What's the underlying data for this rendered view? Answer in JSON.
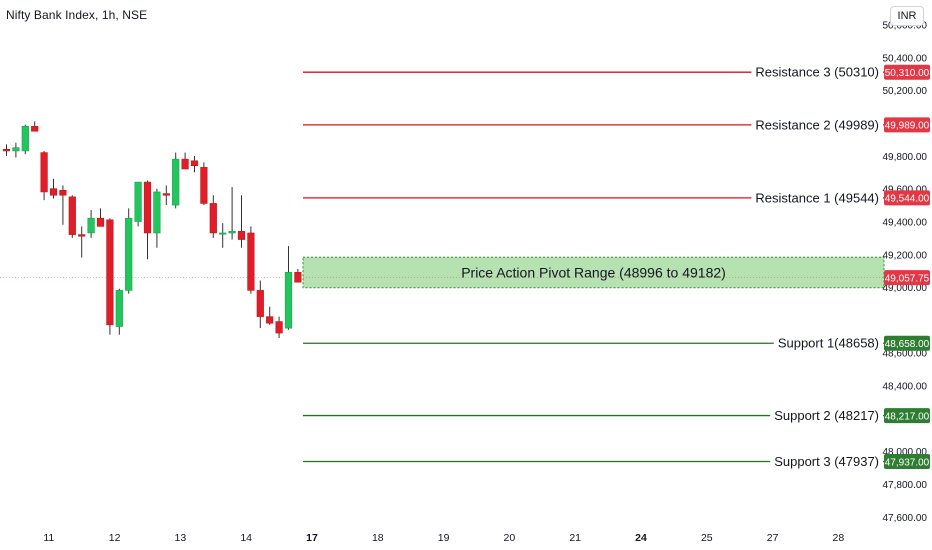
{
  "header": {
    "symbol": "Nifty Bank Index, 1h, NSE",
    "currency": "INR"
  },
  "colors": {
    "up": "#22c55e",
    "down": "#e11d2a",
    "resistance": "#d7141f",
    "support": "#1a7a1a",
    "pivot_fill": "#a9dca3",
    "axis_text": "#131722"
  },
  "chart_data": {
    "type": "candlestick",
    "ylim": [
      47550,
      50750
    ],
    "y_ticks": [
      "50,600.00",
      "50,400.00",
      "50,200.00",
      "49,800.00",
      "49,600.00",
      "49,400.00",
      "49,200.00",
      "49,000.00",
      "48,600.00",
      "48,400.00",
      "48,000.00",
      "47,800.00",
      "47,600.00"
    ],
    "y_tick_values": [
      50600,
      50400,
      50200,
      49800,
      49600,
      49400,
      49200,
      49000,
      48600,
      48400,
      48000,
      47800,
      47600
    ],
    "x_ticks": [
      {
        "label": "11",
        "bar": 4.5,
        "bold": false
      },
      {
        "label": "12",
        "bar": 11.5,
        "bold": false
      },
      {
        "label": "13",
        "bar": 18.5,
        "bold": false
      },
      {
        "label": "14",
        "bar": 25.5,
        "bold": false
      },
      {
        "label": "17",
        "bar": 32.5,
        "bold": true
      },
      {
        "label": "18",
        "bar": 39.5,
        "bold": false
      },
      {
        "label": "19",
        "bar": 46.5,
        "bold": false
      },
      {
        "label": "20",
        "bar": 53.5,
        "bold": false
      },
      {
        "label": "21",
        "bar": 60.5,
        "bold": false
      },
      {
        "label": "24",
        "bar": 67.5,
        "bold": true
      },
      {
        "label": "25",
        "bar": 74.5,
        "bold": false
      },
      {
        "label": "27",
        "bar": 81.5,
        "bold": false
      },
      {
        "label": "28",
        "bar": 88.5,
        "bold": false
      }
    ],
    "current_price": {
      "value": 49057.75,
      "label": "49,057.75"
    },
    "levels": [
      {
        "name": "Resistance 3 (50310)",
        "value": 50310,
        "label": "50,310.00",
        "kind": "resistance"
      },
      {
        "name": "Resistance 2 (49989)",
        "value": 49989,
        "label": "49,989.00",
        "kind": "resistance"
      },
      {
        "name": "Resistance 1 (49544)",
        "value": 49544,
        "label": "49,544.00",
        "kind": "resistance"
      },
      {
        "name": "Support 1(48658)",
        "value": 48658,
        "label": "48,658.00",
        "kind": "support"
      },
      {
        "name": "Support 2 (48217)",
        "value": 48217,
        "label": "48,217.00",
        "kind": "support"
      },
      {
        "name": "Support 3 (47937)",
        "value": 47937,
        "label": "47,937.00",
        "kind": "support"
      }
    ],
    "pivot_range": {
      "label": "Price Action Pivot Range (48996 to 49182)",
      "low": 48996,
      "high": 49182
    },
    "candles": [
      {
        "o": 49840,
        "h": 49870,
        "l": 49800,
        "c": 49830
      },
      {
        "o": 49830,
        "h": 49880,
        "l": 49790,
        "c": 49850
      },
      {
        "o": 49830,
        "h": 49990,
        "l": 49810,
        "c": 49980
      },
      {
        "o": 49980,
        "h": 50010,
        "l": 49960,
        "c": 49950
      },
      {
        "o": 49820,
        "h": 49830,
        "l": 49530,
        "c": 49580
      },
      {
        "o": 49600,
        "h": 49660,
        "l": 49540,
        "c": 49560
      },
      {
        "o": 49590,
        "h": 49620,
        "l": 49380,
        "c": 49560
      },
      {
        "o": 49550,
        "h": 49560,
        "l": 49300,
        "c": 49320
      },
      {
        "o": 49320,
        "h": 49370,
        "l": 49180,
        "c": 49310
      },
      {
        "o": 49330,
        "h": 49470,
        "l": 49300,
        "c": 49420
      },
      {
        "o": 49420,
        "h": 49480,
        "l": 49370,
        "c": 49370
      },
      {
        "o": 49410,
        "h": 49420,
        "l": 48710,
        "c": 48770
      },
      {
        "o": 48760,
        "h": 48990,
        "l": 48710,
        "c": 48980
      },
      {
        "o": 48980,
        "h": 49480,
        "l": 48960,
        "c": 49420
      },
      {
        "o": 49400,
        "h": 49640,
        "l": 49370,
        "c": 49640
      },
      {
        "o": 49640,
        "h": 49650,
        "l": 49170,
        "c": 49330
      },
      {
        "o": 49330,
        "h": 49600,
        "l": 49240,
        "c": 49580
      },
      {
        "o": 49570,
        "h": 49620,
        "l": 49500,
        "c": 49560
      },
      {
        "o": 49500,
        "h": 49820,
        "l": 49480,
        "c": 49780
      },
      {
        "o": 49780,
        "h": 49820,
        "l": 49720,
        "c": 49720
      },
      {
        "o": 49770,
        "h": 49800,
        "l": 49700,
        "c": 49740
      },
      {
        "o": 49730,
        "h": 49760,
        "l": 49500,
        "c": 49510
      },
      {
        "o": 49510,
        "h": 49560,
        "l": 49300,
        "c": 49330
      },
      {
        "o": 49330,
        "h": 49390,
        "l": 49240,
        "c": 49330
      },
      {
        "o": 49330,
        "h": 49610,
        "l": 49290,
        "c": 49340
      },
      {
        "o": 49340,
        "h": 49560,
        "l": 49240,
        "c": 49290
      },
      {
        "o": 49330,
        "h": 49370,
        "l": 48960,
        "c": 48980
      },
      {
        "o": 48980,
        "h": 49040,
        "l": 48750,
        "c": 48820
      },
      {
        "o": 48820,
        "h": 48880,
        "l": 48770,
        "c": 48780
      },
      {
        "o": 48790,
        "h": 48820,
        "l": 48690,
        "c": 48720
      },
      {
        "o": 48750,
        "h": 49250,
        "l": 48740,
        "c": 49090
      },
      {
        "o": 49090,
        "h": 49110,
        "l": 49030,
        "c": 49030
      }
    ]
  }
}
